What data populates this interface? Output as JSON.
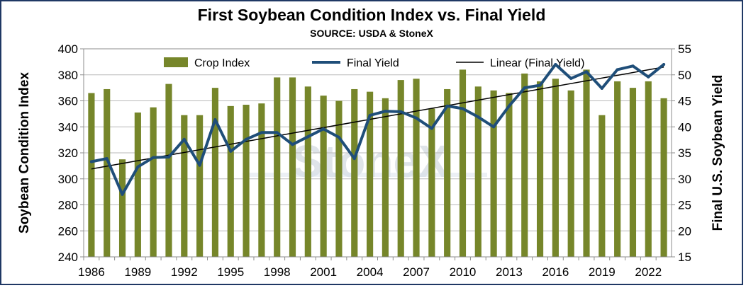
{
  "chart_data": {
    "type": "bar",
    "title": "First Soybean Condition Index vs. Final Yield",
    "subtitle": "SOURCE: USDA & StoneX",
    "ylabel_left": "Soybean Condition Index",
    "ylabel_right": "Final U.S. Soybean Yield",
    "watermark": "StoneX",
    "ylim_left": [
      240,
      400
    ],
    "ylim_right": [
      15,
      55
    ],
    "yticks_left": [
      "240",
      "260",
      "280",
      "300",
      "320",
      "340",
      "360",
      "380",
      "400"
    ],
    "yticks_right": [
      "15",
      "20",
      "25",
      "30",
      "35",
      "40",
      "45",
      "50",
      "55"
    ],
    "x_tick_labels": [
      "1986",
      "1989",
      "1992",
      "1995",
      "1998",
      "2001",
      "2004",
      "2007",
      "2010",
      "2013",
      "2016",
      "2019",
      "2022"
    ],
    "grid": true,
    "legend_position": "top",
    "colors": {
      "bars": "#76862a",
      "line": "#1f4e79",
      "trend": "#000000",
      "border": "#1f3864"
    },
    "years": [
      1986,
      1987,
      1988,
      1989,
      1990,
      1991,
      1992,
      1993,
      1994,
      1995,
      1996,
      1997,
      1998,
      1999,
      2000,
      2001,
      2002,
      2003,
      2004,
      2005,
      2006,
      2007,
      2008,
      2009,
      2010,
      2011,
      2012,
      2013,
      2014,
      2015,
      2016,
      2017,
      2018,
      2019,
      2020,
      2021,
      2022,
      2023
    ],
    "series": [
      {
        "name": "Crop Index",
        "type": "bar",
        "axis": "left",
        "values": [
          366,
          369,
          315,
          351,
          355,
          373,
          349,
          349,
          370,
          356,
          357,
          358,
          378,
          378,
          371,
          364,
          360,
          369,
          367,
          362,
          376,
          377,
          354,
          369,
          384,
          371,
          368,
          366,
          381,
          375,
          377,
          368,
          384,
          349,
          375,
          370,
          375,
          362
        ]
      },
      {
        "name": "Final Yield",
        "type": "line",
        "axis": "right",
        "values": [
          33.3,
          33.9,
          27.0,
          32.3,
          34.1,
          34.2,
          37.6,
          32.6,
          41.4,
          35.3,
          37.6,
          38.9,
          38.9,
          36.6,
          38.1,
          39.6,
          38.0,
          33.9,
          42.2,
          43.0,
          42.9,
          41.7,
          39.7,
          44.0,
          43.5,
          41.9,
          40.0,
          44.0,
          47.5,
          48.0,
          52.0,
          49.3,
          50.6,
          47.4,
          51.0,
          51.7,
          49.6,
          52.0
        ]
      },
      {
        "name": "Linear (Final Yield)",
        "type": "trend",
        "axis": "right",
        "values": [
          31.9,
          51.5
        ]
      }
    ]
  }
}
